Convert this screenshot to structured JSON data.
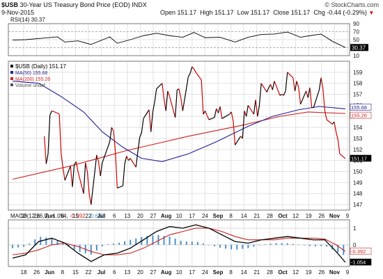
{
  "header": {
    "symbol": "$USB",
    "name": "30-Year US Treasury Bond Price (EOD)",
    "exchange": "INDX",
    "date": "9-Nov-2015",
    "open_label": "Open",
    "open": "151.17",
    "high_label": "High",
    "high": "151.17",
    "low_label": "Low",
    "low": "151.17",
    "close_label": "Close",
    "close": "151.17",
    "change_label": "Chg",
    "change": "-0.44 (-0.29%)",
    "change_arrow": "▼",
    "watermark": "© StockCharts.com"
  },
  "colors": {
    "price": "#000000",
    "price_down": "#cc0000",
    "ma50": "#1f1f8f",
    "ma200": "#cc1f1f",
    "volume": "#555555",
    "macd": "#000000",
    "signal": "#cc2222",
    "histogram": "#4a90c8",
    "rsi": "#000000"
  },
  "rsi_panel": {
    "label": "RSI(14) 30.37",
    "last": "30.37",
    "ticks": [
      "90",
      "70",
      "50",
      "30",
      "10"
    ]
  },
  "price_panel": {
    "legend": [
      {
        "text": "$USB (Daily) 151.17",
        "color": "#000000"
      },
      {
        "text": "MA(50) 155.68",
        "color": "#1f1f8f"
      },
      {
        "text": "MA(200) 155.26",
        "color": "#cc1f1f"
      },
      {
        "text": "Volume undef",
        "color": "#555555"
      }
    ],
    "ticks": [
      "159",
      "158",
      "157",
      "156",
      "155",
      "154",
      "153",
      "152",
      "151",
      "150",
      "149",
      "148",
      "147"
    ],
    "tags": [
      {
        "text": "155.68",
        "value": 155.68,
        "style": "ma50"
      },
      {
        "text": "155.26",
        "value": 155.26,
        "style": "ma200"
      },
      {
        "text": "151.17",
        "value": 151.17,
        "style": "price"
      }
    ]
  },
  "macd_panel": {
    "label_prefix": "MACD(12,26,9)",
    "macd": "-1.054",
    "signal": "-0.392",
    "hist": "-0.662",
    "ticks": [
      "1",
      "0"
    ],
    "tags": [
      {
        "text": "-0.392",
        "value": -0.392
      },
      {
        "text": "-1.054",
        "value": -1.054
      }
    ]
  },
  "x_axis": {
    "labels": [
      "18",
      "26",
      "Jun",
      "8",
      "15",
      "22",
      "Jul",
      "6",
      "13",
      "20",
      "27",
      "Aug",
      "10",
      "17",
      "24",
      "Sep",
      "8",
      "14",
      "21",
      "28",
      "Oct",
      "12",
      "19",
      "26",
      "Nov",
      "9"
    ]
  },
  "chart_data": {
    "type": "line",
    "title": "30-Year US Treasury Bond Price (EOD)",
    "x_range": [
      "2015-05-15",
      "2015-11-09"
    ],
    "price": {
      "ylim": [
        146.5,
        160
      ],
      "series": [
        {
          "name": "$USB (Daily)",
          "points": [
            [
              "2015-06-01",
              153.2
            ],
            [
              "2015-06-02",
              150.7
            ],
            [
              "2015-06-03",
              151.6
            ],
            [
              "2015-06-04",
              155.1
            ],
            [
              "2015-06-05",
              155.5
            ],
            [
              "2015-06-08",
              155.3
            ],
            [
              "2015-06-09",
              155.2
            ],
            [
              "2015-06-10",
              151.6
            ],
            [
              "2015-06-11",
              150.3
            ],
            [
              "2015-06-12",
              149.2
            ],
            [
              "2015-06-15",
              150.5
            ],
            [
              "2015-06-16",
              148.6
            ],
            [
              "2015-06-17",
              150.6
            ],
            [
              "2015-06-18",
              150.9
            ],
            [
              "2015-06-19",
              150.0
            ],
            [
              "2015-06-22",
              148.0
            ],
            [
              "2015-06-23",
              150.8
            ],
            [
              "2015-06-24",
              150.0
            ],
            [
              "2015-06-25",
              148.0
            ],
            [
              "2015-06-26",
              147.0
            ],
            [
              "2015-06-29",
              151.5
            ],
            [
              "2015-06-30",
              150.9
            ],
            [
              "2015-07-01",
              149.6
            ],
            [
              "2015-07-02",
              150.8
            ],
            [
              "2015-07-06",
              152.7
            ],
            [
              "2015-07-07",
              154.0
            ],
            [
              "2015-07-08",
              153.7
            ],
            [
              "2015-07-09",
              151.8
            ],
            [
              "2015-07-10",
              148.5
            ],
            [
              "2015-07-13",
              148.7
            ],
            [
              "2015-07-14",
              150.7
            ],
            [
              "2015-07-15",
              151.4
            ],
            [
              "2015-07-16",
              151.0
            ],
            [
              "2015-07-17",
              151.2
            ],
            [
              "2015-07-20",
              150.4
            ],
            [
              "2015-07-21",
              151.8
            ],
            [
              "2015-07-22",
              153.1
            ],
            [
              "2015-07-23",
              153.5
            ],
            [
              "2015-07-24",
              154.8
            ],
            [
              "2015-07-27",
              155.6
            ],
            [
              "2015-07-28",
              153.6
            ],
            [
              "2015-07-29",
              155.4
            ],
            [
              "2015-07-30",
              156.3
            ],
            [
              "2015-07-31",
              157.5
            ],
            [
              "2015-08-03",
              158.0
            ],
            [
              "2015-08-04",
              156.6
            ],
            [
              "2015-08-05",
              155.5
            ],
            [
              "2015-08-06",
              157.3
            ],
            [
              "2015-08-07",
              156.8
            ],
            [
              "2015-08-10",
              154.9
            ],
            [
              "2015-08-11",
              157.4
            ],
            [
              "2015-08-12",
              157.5
            ],
            [
              "2015-08-13",
              156.7
            ],
            [
              "2015-08-14",
              155.5
            ],
            [
              "2015-08-17",
              158.6
            ],
            [
              "2015-08-18",
              158.9
            ],
            [
              "2015-08-19",
              159.5
            ],
            [
              "2015-08-20",
              159.3
            ],
            [
              "2015-08-21",
              159.0
            ],
            [
              "2015-08-24",
              158.3
            ],
            [
              "2015-08-25",
              155.2
            ],
            [
              "2015-08-26",
              155.5
            ],
            [
              "2015-08-27",
              155.1
            ],
            [
              "2015-08-28",
              154.7
            ],
            [
              "2015-08-31",
              154.9
            ],
            [
              "2015-09-01",
              155.7
            ],
            [
              "2015-09-02",
              155.3
            ],
            [
              "2015-09-03",
              155.9
            ],
            [
              "2015-09-04",
              154.8
            ],
            [
              "2015-09-08",
              155.2
            ],
            [
              "2015-09-09",
              155.4
            ],
            [
              "2015-09-10",
              154.6
            ],
            [
              "2015-09-11",
              152.4
            ],
            [
              "2015-09-14",
              153.2
            ],
            [
              "2015-09-15",
              153.0
            ],
            [
              "2015-09-16",
              155.5
            ],
            [
              "2015-09-17",
              155.0
            ],
            [
              "2015-09-18",
              156.0
            ],
            [
              "2015-09-21",
              155.2
            ],
            [
              "2015-09-22",
              156.5
            ],
            [
              "2015-09-23",
              155.0
            ],
            [
              "2015-09-24",
              156.0
            ],
            [
              "2015-09-25",
              158.0
            ],
            [
              "2015-09-28",
              157.2
            ],
            [
              "2015-09-29",
              157.6
            ],
            [
              "2015-09-30",
              157.9
            ],
            [
              "2015-10-01",
              157.4
            ],
            [
              "2015-10-02",
              158.2
            ],
            [
              "2015-10-05",
              156.9
            ],
            [
              "2015-10-06",
              157.0
            ],
            [
              "2015-10-07",
              156.9
            ],
            [
              "2015-10-08",
              157.3
            ],
            [
              "2015-10-09",
              159.0
            ],
            [
              "2015-10-12",
              158.5
            ],
            [
              "2015-10-13",
              157.3
            ],
            [
              "2015-10-14",
              158.2
            ],
            [
              "2015-10-15",
              157.6
            ],
            [
              "2015-10-16",
              156.1
            ],
            [
              "2015-10-19",
              157.3
            ],
            [
              "2015-10-20",
              156.7
            ],
            [
              "2015-10-21",
              157.6
            ],
            [
              "2015-10-22",
              155.8
            ],
            [
              "2015-10-23",
              155.8
            ],
            [
              "2015-10-26",
              157.4
            ],
            [
              "2015-10-27",
              158.5
            ],
            [
              "2015-10-28",
              157.5
            ],
            [
              "2015-10-29",
              155.5
            ],
            [
              "2015-10-30",
              154.7
            ],
            [
              "2015-11-02",
              154.3
            ],
            [
              "2015-11-03",
              154.5
            ],
            [
              "2015-11-04",
              153.6
            ],
            [
              "2015-11-05",
              152.9
            ],
            [
              "2015-11-06",
              151.6
            ],
            [
              "2015-11-09",
              151.17
            ]
          ]
        },
        {
          "name": "MA(50)",
          "points": [
            [
              "2015-05-15",
              158.2
            ],
            [
              "2015-05-29",
              158.0
            ],
            [
              "2015-06-10",
              156.8
            ],
            [
              "2015-06-22",
              155.4
            ],
            [
              "2015-07-02",
              153.6
            ],
            [
              "2015-07-13",
              152.2
            ],
            [
              "2015-07-23",
              151.2
            ],
            [
              "2015-08-03",
              150.9
            ],
            [
              "2015-08-17",
              151.6
            ],
            [
              "2015-09-01",
              152.7
            ],
            [
              "2015-09-18",
              154.1
            ],
            [
              "2015-10-01",
              155.0
            ],
            [
              "2015-10-15",
              155.6
            ],
            [
              "2015-10-26",
              155.9
            ],
            [
              "2015-11-09",
              155.68
            ]
          ]
        },
        {
          "name": "MA(200)",
          "points": [
            [
              "2015-05-15",
              149.3
            ],
            [
              "2015-06-15",
              150.5
            ],
            [
              "2015-07-15",
              151.9
            ],
            [
              "2015-08-17",
              153.2
            ],
            [
              "2015-09-15",
              154.2
            ],
            [
              "2015-10-05",
              155.0
            ],
            [
              "2015-10-20",
              155.4
            ],
            [
              "2015-11-09",
              155.26
            ]
          ]
        }
      ]
    },
    "rsi": {
      "ylim": [
        10,
        90
      ],
      "series": [
        {
          "name": "RSI(14)",
          "points": [
            [
              "2015-05-15",
              49
            ],
            [
              "2015-05-22",
              50
            ],
            [
              "2015-06-01",
              54
            ],
            [
              "2015-06-08",
              57
            ],
            [
              "2015-06-12",
              44
            ],
            [
              "2015-06-19",
              47
            ],
            [
              "2015-06-26",
              38
            ],
            [
              "2015-07-06",
              57
            ],
            [
              "2015-07-10",
              41
            ],
            [
              "2015-07-17",
              50
            ],
            [
              "2015-07-24",
              60
            ],
            [
              "2015-07-31",
              66
            ],
            [
              "2015-08-07",
              60
            ],
            [
              "2015-08-14",
              56
            ],
            [
              "2015-08-20",
              68
            ],
            [
              "2015-08-26",
              55
            ],
            [
              "2015-09-03",
              56
            ],
            [
              "2015-09-11",
              44
            ],
            [
              "2015-09-18",
              56
            ],
            [
              "2015-09-25",
              63
            ],
            [
              "2015-10-02",
              64
            ],
            [
              "2015-10-09",
              69
            ],
            [
              "2015-10-16",
              56
            ],
            [
              "2015-10-21",
              60
            ],
            [
              "2015-10-27",
              64
            ],
            [
              "2015-11-02",
              46
            ],
            [
              "2015-11-09",
              30.37
            ]
          ]
        }
      ]
    },
    "macd": {
      "ylim": [
        -1.3,
        1.5
      ],
      "series": [
        {
          "name": "MACD(12,26,9)",
          "points": [
            [
              "2015-05-15",
              -0.8
            ],
            [
              "2015-05-22",
              -0.6
            ],
            [
              "2015-05-29",
              0.2
            ],
            [
              "2015-06-05",
              0.4
            ],
            [
              "2015-06-12",
              0.1
            ],
            [
              "2015-06-19",
              -0.5
            ],
            [
              "2015-06-26",
              -1.0
            ],
            [
              "2015-07-03",
              -0.6
            ],
            [
              "2015-07-10",
              -0.5
            ],
            [
              "2015-07-17",
              -0.2
            ],
            [
              "2015-07-24",
              0.3
            ],
            [
              "2015-07-31",
              0.8
            ],
            [
              "2015-08-07",
              1.1
            ],
            [
              "2015-08-14",
              1.0
            ],
            [
              "2015-08-21",
              1.2
            ],
            [
              "2015-08-28",
              1.0
            ],
            [
              "2015-09-04",
              0.6
            ],
            [
              "2015-09-11",
              0.2
            ],
            [
              "2015-09-18",
              0.1
            ],
            [
              "2015-09-25",
              0.3
            ],
            [
              "2015-10-02",
              0.4
            ],
            [
              "2015-10-09",
              0.5
            ],
            [
              "2015-10-16",
              0.4
            ],
            [
              "2015-10-23",
              0.3
            ],
            [
              "2015-10-29",
              0.3
            ],
            [
              "2015-11-04",
              -0.4
            ],
            [
              "2015-11-09",
              -1.054
            ]
          ]
        },
        {
          "name": "Signal",
          "points": [
            [
              "2015-05-15",
              -0.6
            ],
            [
              "2015-05-22",
              -0.5
            ],
            [
              "2015-05-29",
              -0.3
            ],
            [
              "2015-06-05",
              0.0
            ],
            [
              "2015-06-12",
              0.1
            ],
            [
              "2015-06-19",
              -0.1
            ],
            [
              "2015-06-26",
              -0.4
            ],
            [
              "2015-07-03",
              -0.6
            ],
            [
              "2015-07-10",
              -0.6
            ],
            [
              "2015-07-17",
              -0.5
            ],
            [
              "2015-07-24",
              -0.2
            ],
            [
              "2015-07-31",
              0.2
            ],
            [
              "2015-08-07",
              0.6
            ],
            [
              "2015-08-14",
              0.8
            ],
            [
              "2015-08-21",
              1.0
            ],
            [
              "2015-08-28",
              1.0
            ],
            [
              "2015-09-04",
              0.8
            ],
            [
              "2015-09-11",
              0.5
            ],
            [
              "2015-09-18",
              0.3
            ],
            [
              "2015-09-25",
              0.3
            ],
            [
              "2015-10-02",
              0.3
            ],
            [
              "2015-10-09",
              0.4
            ],
            [
              "2015-10-16",
              0.4
            ],
            [
              "2015-10-23",
              0.4
            ],
            [
              "2015-10-29",
              0.35
            ],
            [
              "2015-11-04",
              0.0
            ],
            [
              "2015-11-09",
              -0.392
            ]
          ]
        }
      ]
    }
  }
}
